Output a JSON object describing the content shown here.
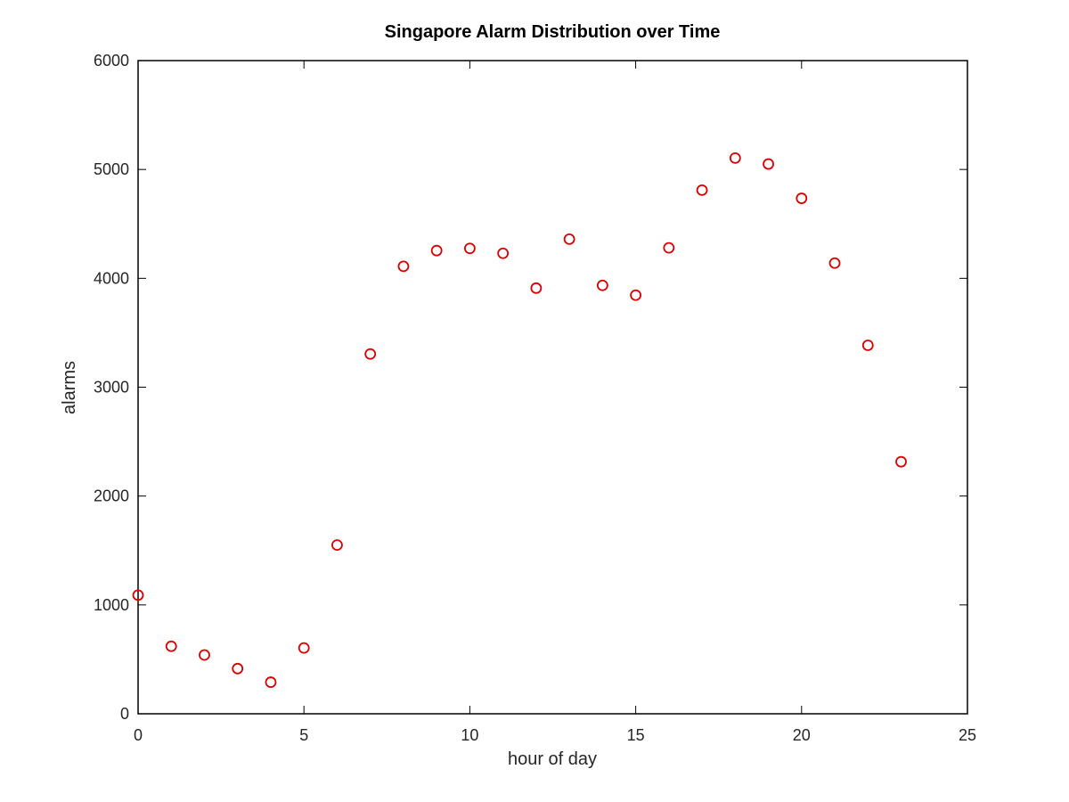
{
  "chart_data": {
    "type": "scatter",
    "title": "Singapore Alarm Distribution over Time",
    "xlabel": "hour of day",
    "ylabel": "alarms",
    "xlim": [
      0,
      25
    ],
    "ylim": [
      0,
      6000
    ],
    "x_ticks": [
      0,
      5,
      10,
      15,
      20,
      25
    ],
    "y_ticks": [
      0,
      1000,
      2000,
      3000,
      4000,
      5000,
      6000
    ],
    "grid": false,
    "marker": "circle",
    "colors": {
      "marker": "#dd0000",
      "axes": "#000000"
    },
    "x": [
      0,
      1,
      2,
      3,
      4,
      5,
      6,
      7,
      8,
      9,
      10,
      11,
      12,
      13,
      14,
      15,
      16,
      17,
      18,
      19,
      20,
      21,
      22,
      23
    ],
    "y": [
      1090,
      620,
      540,
      415,
      290,
      605,
      1550,
      3305,
      4110,
      4255,
      4275,
      4230,
      3910,
      4360,
      3935,
      3845,
      4280,
      4810,
      5105,
      5050,
      4735,
      4140,
      3385,
      2315
    ]
  }
}
